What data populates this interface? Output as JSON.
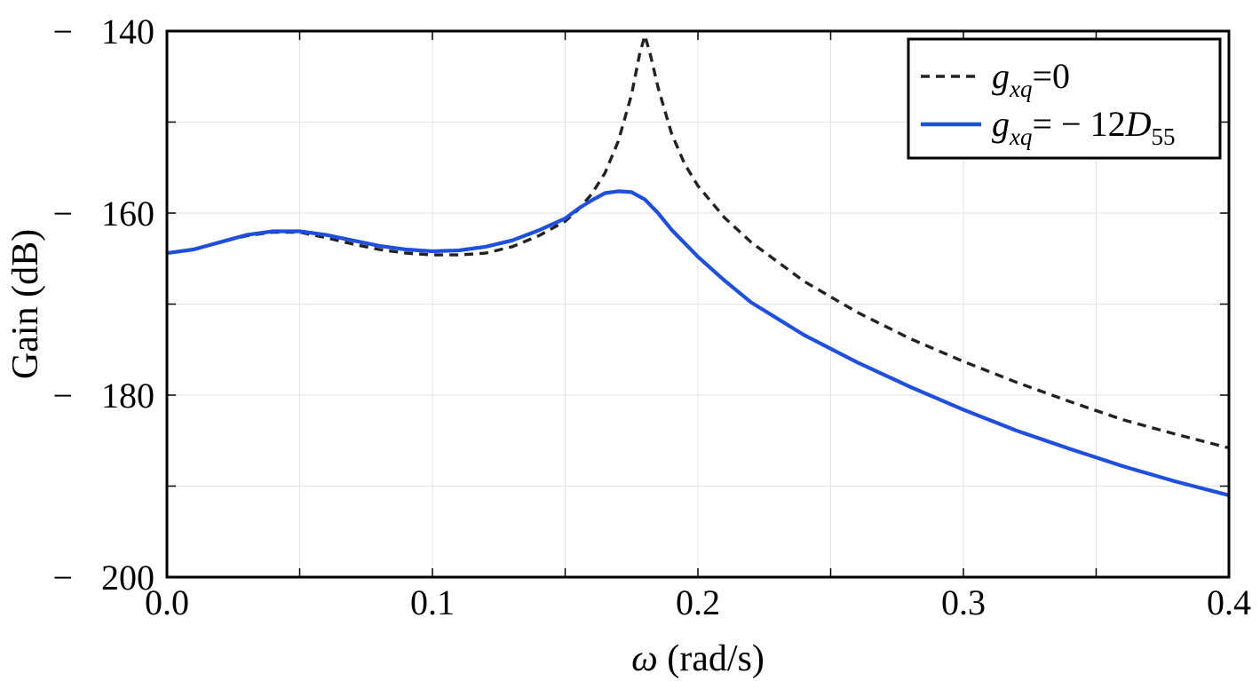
{
  "chart_data": {
    "type": "line",
    "title": "",
    "xlabel_symbol": "ω",
    "xlabel_unit": " (rad/s)",
    "ylabel": "Gain (dB)",
    "xlim": [
      0.0,
      0.4
    ],
    "ylim": [
      -200,
      -140
    ],
    "x_ticks": [
      0.0,
      0.1,
      0.2,
      0.3,
      0.4
    ],
    "x_tick_labels": [
      "0.0",
      "0.1",
      "0.2",
      "0.3",
      "0.4"
    ],
    "y_ticks": [
      -140,
      -160,
      -180,
      -200
    ],
    "y_tick_labels": [
      "140",
      "160",
      "180",
      "200"
    ],
    "y_tick_sign": "−",
    "grid": true,
    "legend_position": "top-right",
    "series": [
      {
        "legend": {
          "sym": "g",
          "sub": "xq",
          "rest": "=0",
          "sub2": ""
        },
        "style": "dashed",
        "color": "#222222",
        "x": [
          0.0,
          0.01,
          0.02,
          0.03,
          0.04,
          0.05,
          0.06,
          0.07,
          0.08,
          0.09,
          0.1,
          0.11,
          0.12,
          0.13,
          0.14,
          0.15,
          0.155,
          0.16,
          0.165,
          0.17,
          0.175,
          0.178,
          0.18,
          0.182,
          0.185,
          0.19,
          0.195,
          0.2,
          0.21,
          0.22,
          0.24,
          0.26,
          0.28,
          0.3,
          0.32,
          0.34,
          0.36,
          0.38,
          0.4
        ],
        "y": [
          -164.4,
          -164.0,
          -163.2,
          -162.5,
          -162.1,
          -162.1,
          -162.7,
          -163.4,
          -164.0,
          -164.4,
          -164.6,
          -164.6,
          -164.4,
          -163.7,
          -162.5,
          -160.9,
          -159.6,
          -157.9,
          -155.6,
          -152.1,
          -147.0,
          -142.6,
          -140.5,
          -142.5,
          -146.2,
          -151.2,
          -154.6,
          -157.0,
          -160.5,
          -163.2,
          -167.5,
          -170.9,
          -173.8,
          -176.3,
          -178.6,
          -180.7,
          -182.7,
          -184.3,
          -185.8
        ]
      },
      {
        "legend": {
          "sym": "g",
          "sub": "xq",
          "rest": "= − 12",
          "sym2": "D",
          "sub2": "55"
        },
        "style": "solid",
        "color": "#1f4fdb",
        "x": [
          0.0,
          0.01,
          0.02,
          0.03,
          0.04,
          0.05,
          0.06,
          0.07,
          0.08,
          0.09,
          0.1,
          0.11,
          0.12,
          0.13,
          0.14,
          0.15,
          0.155,
          0.16,
          0.165,
          0.17,
          0.175,
          0.18,
          0.185,
          0.19,
          0.2,
          0.21,
          0.22,
          0.24,
          0.26,
          0.28,
          0.3,
          0.32,
          0.34,
          0.36,
          0.38,
          0.4
        ],
        "y": [
          -164.4,
          -164.0,
          -163.2,
          -162.4,
          -162.0,
          -162.0,
          -162.4,
          -163.0,
          -163.6,
          -164.0,
          -164.2,
          -164.1,
          -163.7,
          -163.0,
          -161.9,
          -160.6,
          -159.5,
          -158.6,
          -157.8,
          -157.6,
          -157.7,
          -158.5,
          -160.0,
          -161.8,
          -164.8,
          -167.4,
          -169.8,
          -173.4,
          -176.4,
          -179.1,
          -181.6,
          -183.9,
          -185.9,
          -187.8,
          -189.5,
          -191.0
        ]
      }
    ]
  }
}
